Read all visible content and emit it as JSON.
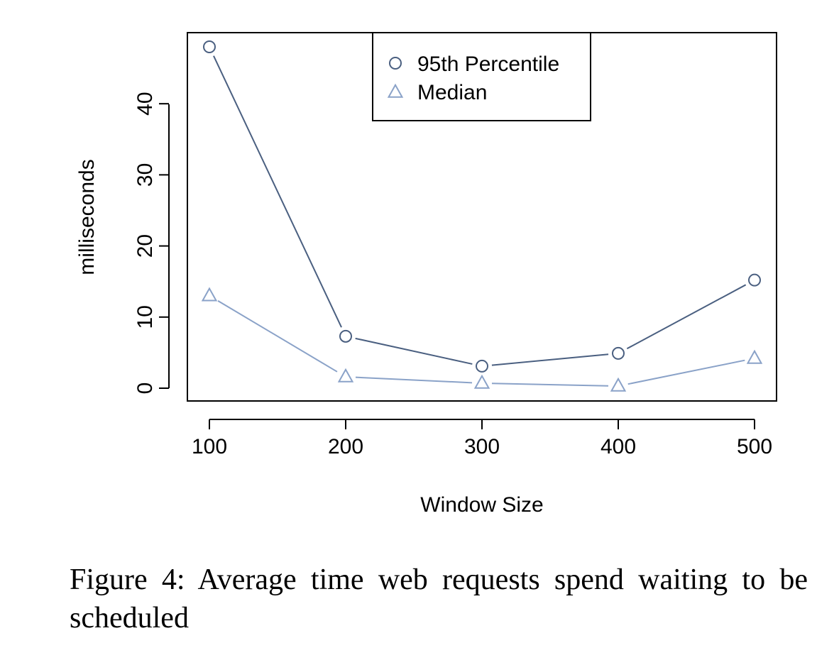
{
  "chart_data": {
    "type": "line",
    "x": [
      100,
      200,
      300,
      400,
      500
    ],
    "xlabel": "Window Size",
    "ylabel": "milliseconds",
    "xlim": [
      100,
      500
    ],
    "ylim": [
      0,
      48
    ],
    "xticks": [
      "100",
      "200",
      "300",
      "400",
      "500"
    ],
    "yticks": [
      "0",
      "10",
      "20",
      "30",
      "40"
    ],
    "grid": false,
    "legend_position": "top-center",
    "series": [
      {
        "name": "95th Percentile",
        "marker": "circle",
        "color": "#4a5f80",
        "values": [
          48,
          7.3,
          3.1,
          4.9,
          15.2
        ]
      },
      {
        "name": "Median",
        "marker": "triangle",
        "color": "#8aa2c8",
        "values": [
          13,
          1.6,
          0.7,
          0.3,
          4.2
        ]
      }
    ]
  },
  "caption": "Figure 4: Average time web requests spend waiting to be scheduled"
}
